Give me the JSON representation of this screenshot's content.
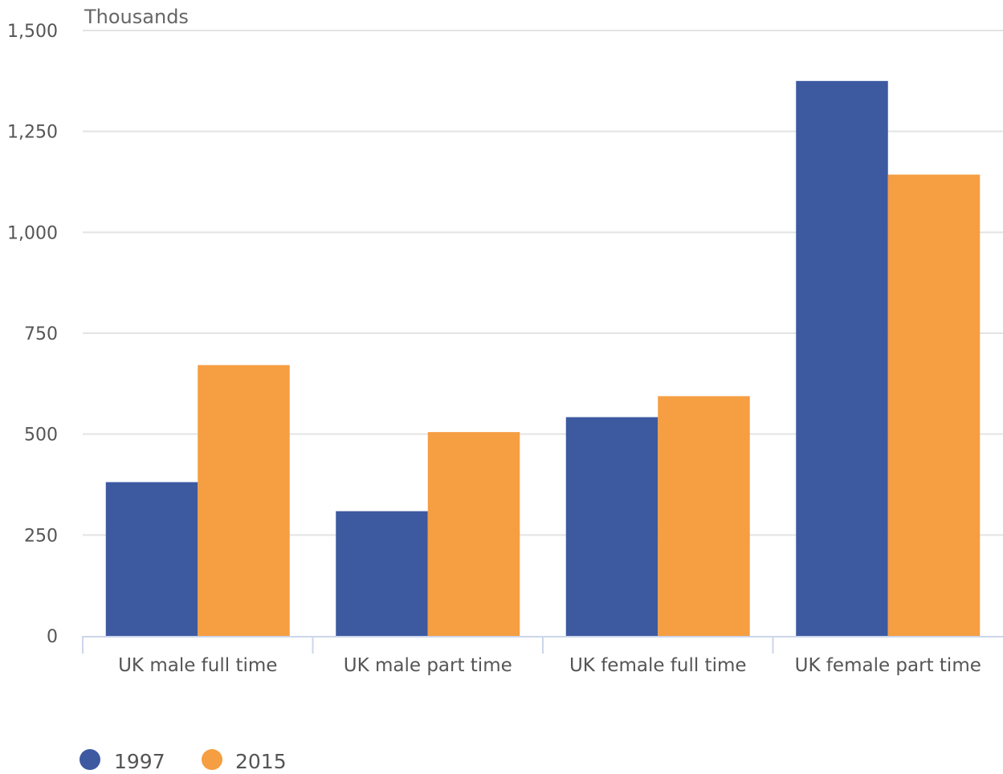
{
  "chart_data": {
    "type": "bar",
    "unit_label": "Thousands",
    "categories": [
      "UK male full time",
      "UK male part time",
      "UK female full time",
      "UK female part time"
    ],
    "series": [
      {
        "name": "1997",
        "values": [
          381,
          309,
          542,
          1375
        ],
        "color": "#3d5aa1"
      },
      {
        "name": "2015",
        "values": [
          671,
          505,
          594,
          1143
        ],
        "color": "#f59e42"
      }
    ],
    "ylim": [
      0,
      1500
    ],
    "yticks": [
      0,
      250,
      500,
      750,
      1000,
      1250,
      1500
    ],
    "ytick_labels": [
      "0",
      "250",
      "500",
      "750",
      "1,000",
      "1,250",
      "1,500"
    ],
    "grid": true,
    "legend_position": "bottom-left"
  }
}
